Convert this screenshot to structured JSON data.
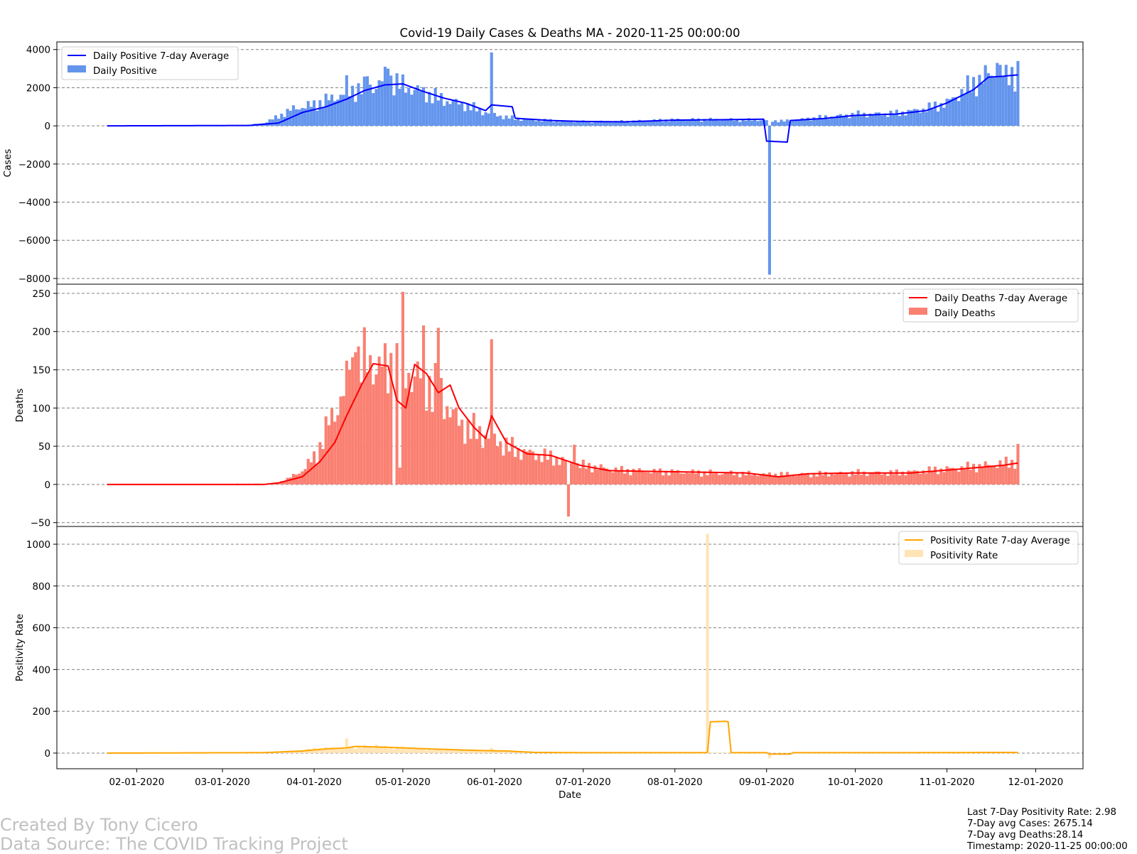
{
  "footer": {
    "credit_author": "Created By Tony Cicero",
    "credit_source": "Data Source: The COVID Tracking Project",
    "stat_positivity": "Last 7-Day Positivity Rate: 2.98",
    "stat_cases": "7-Day avg Cases: 2675.14",
    "stat_deaths": "7-Day avg Deaths:28.14",
    "stat_timestamp": "Timestamp: 2020-11-25 00:00:00"
  },
  "chart_data": {
    "type": "bar",
    "title": "Covid-19 Daily Cases & Deaths MA - 2020-11-25 00:00:00",
    "xlabel": "Date",
    "x_start": "2020-01-22",
    "x_end": "2020-11-25",
    "xlim": [
      "2020-01-05",
      "2020-12-17"
    ],
    "x_ticks": [
      "02-01-2020",
      "03-01-2020",
      "04-01-2020",
      "05-01-2020",
      "06-01-2020",
      "07-01-2020",
      "08-01-2020",
      "09-01-2020",
      "10-01-2020",
      "11-01-2020",
      "12-01-2020"
    ],
    "grid": "y-dashed",
    "colors": {
      "cases_bar": "#6495ED",
      "cases_line": "#0000FF",
      "deaths_bar": "#FA8072",
      "deaths_line": "#FF0000",
      "positivity_bar": "#FFE4B5",
      "positivity_line": "#FFA500",
      "grid": "#808080"
    },
    "panels": [
      {
        "ylabel": "Cases",
        "ylim": [
          -8300,
          4400
        ],
        "yticks": [
          4000,
          2000,
          0,
          -2000,
          -4000,
          -6000,
          -8000
        ],
        "legend_position": "upper-left",
        "bar_series_name": "Daily Positive",
        "line_series_name": "Daily Positive 7-day Average",
        "bar_knots": [
          [
            "2020-01-22",
            0
          ],
          [
            "2020-03-08",
            15
          ],
          [
            "2020-03-15",
            150
          ],
          [
            "2020-03-20",
            500
          ],
          [
            "2020-03-25",
            900
          ],
          [
            "2020-04-01",
            1100
          ],
          [
            "2020-04-08",
            1500
          ],
          [
            "2020-04-15",
            1900
          ],
          [
            "2020-04-22",
            2100
          ],
          [
            "2020-04-26",
            2500
          ],
          [
            "2020-04-30",
            2150
          ],
          [
            "2020-05-07",
            1800
          ],
          [
            "2020-05-15",
            1350
          ],
          [
            "2020-05-22",
            1100
          ],
          [
            "2020-05-29",
            700
          ],
          [
            "2020-06-05",
            450
          ],
          [
            "2020-06-12",
            320
          ],
          [
            "2020-06-20",
            280
          ],
          [
            "2020-06-30",
            220
          ],
          [
            "2020-07-15",
            230
          ],
          [
            "2020-08-01",
            320
          ],
          [
            "2020-08-15",
            330
          ],
          [
            "2020-08-31",
            300
          ],
          [
            "2020-09-07",
            250
          ],
          [
            "2020-09-15",
            380
          ],
          [
            "2020-10-01",
            600
          ],
          [
            "2020-10-15",
            650
          ],
          [
            "2020-10-25",
            900
          ],
          [
            "2020-11-01",
            1200
          ],
          [
            "2020-11-08",
            2000
          ],
          [
            "2020-11-15",
            2700
          ],
          [
            "2020-11-25",
            2800
          ]
        ],
        "bar_spikes": [
          [
            "2020-04-12",
            2650
          ],
          [
            "2020-04-19",
            2600
          ],
          [
            "2020-04-25",
            3100
          ],
          [
            "2020-04-26",
            3000
          ],
          [
            "2020-05-31",
            3850
          ],
          [
            "2020-09-02",
            -7800
          ],
          [
            "2020-11-25",
            3400
          ],
          [
            "2020-11-24",
            1800
          ],
          [
            "2020-11-21",
            3200
          ],
          [
            "2020-11-18",
            3300
          ]
        ],
        "line_knots": [
          [
            "2020-01-22",
            0
          ],
          [
            "2020-03-10",
            20
          ],
          [
            "2020-03-20",
            150
          ],
          [
            "2020-03-28",
            700
          ],
          [
            "2020-04-05",
            1000
          ],
          [
            "2020-04-12",
            1400
          ],
          [
            "2020-04-18",
            1850
          ],
          [
            "2020-04-25",
            2150
          ],
          [
            "2020-05-01",
            2200
          ],
          [
            "2020-05-08",
            1800
          ],
          [
            "2020-05-15",
            1450
          ],
          [
            "2020-05-22",
            1200
          ],
          [
            "2020-05-29",
            800
          ],
          [
            "2020-05-31",
            1100
          ],
          [
            "2020-06-07",
            1000
          ],
          [
            "2020-06-08",
            400
          ],
          [
            "2020-06-20",
            280
          ],
          [
            "2020-07-01",
            230
          ],
          [
            "2020-07-15",
            210
          ],
          [
            "2020-08-01",
            300
          ],
          [
            "2020-08-15",
            320
          ],
          [
            "2020-08-31",
            350
          ],
          [
            "2020-09-01",
            -800
          ],
          [
            "2020-09-08",
            -850
          ],
          [
            "2020-09-09",
            280
          ],
          [
            "2020-09-20",
            380
          ],
          [
            "2020-10-01",
            550
          ],
          [
            "2020-10-15",
            620
          ],
          [
            "2020-10-25",
            800
          ],
          [
            "2020-11-01",
            1200
          ],
          [
            "2020-11-10",
            1900
          ],
          [
            "2020-11-15",
            2550
          ],
          [
            "2020-11-20",
            2600
          ],
          [
            "2020-11-25",
            2675
          ]
        ]
      },
      {
        "ylabel": "Deaths",
        "ylim": [
          -55,
          262
        ],
        "yticks": [
          250,
          200,
          150,
          100,
          50,
          0,
          -50
        ],
        "legend_position": "upper-right",
        "bar_series_name": "Daily Deaths",
        "line_series_name": "Daily Deaths 7-day Average",
        "bar_knots": [
          [
            "2020-01-22",
            0
          ],
          [
            "2020-03-18",
            1
          ],
          [
            "2020-03-22",
            5
          ],
          [
            "2020-03-28",
            18
          ],
          [
            "2020-04-02",
            40
          ],
          [
            "2020-04-06",
            80
          ],
          [
            "2020-04-10",
            110
          ],
          [
            "2020-04-15",
            155
          ],
          [
            "2020-04-20",
            160
          ],
          [
            "2020-04-25",
            150
          ],
          [
            "2020-05-01",
            150
          ],
          [
            "2020-05-06",
            140
          ],
          [
            "2020-05-10",
            130
          ],
          [
            "2020-05-15",
            110
          ],
          [
            "2020-05-20",
            80
          ],
          [
            "2020-05-25",
            70
          ],
          [
            "2020-05-31",
            60
          ],
          [
            "2020-06-08",
            45
          ],
          [
            "2020-06-20",
            35
          ],
          [
            "2020-06-30",
            25
          ],
          [
            "2020-07-15",
            18
          ],
          [
            "2020-08-01",
            16
          ],
          [
            "2020-08-15",
            15
          ],
          [
            "2020-09-01",
            13
          ],
          [
            "2020-09-15",
            13
          ],
          [
            "2020-10-01",
            15
          ],
          [
            "2020-10-15",
            15
          ],
          [
            "2020-11-01",
            20
          ],
          [
            "2020-11-15",
            25
          ],
          [
            "2020-11-25",
            30
          ]
        ],
        "bar_spikes": [
          [
            "2020-04-10",
            115
          ],
          [
            "2020-04-13",
            150
          ],
          [
            "2020-04-15",
            173
          ],
          [
            "2020-04-27",
            172
          ],
          [
            "2020-04-28",
            0
          ],
          [
            "2020-04-30",
            22
          ],
          [
            "2020-05-01",
            252
          ],
          [
            "2020-05-08",
            208
          ],
          [
            "2020-05-13",
            205
          ],
          [
            "2020-05-31",
            190
          ],
          [
            "2020-06-26",
            -42
          ],
          [
            "2020-06-28",
            52
          ],
          [
            "2020-11-25",
            53
          ]
        ],
        "line_knots": [
          [
            "2020-01-22",
            0
          ],
          [
            "2020-03-15",
            0
          ],
          [
            "2020-03-20",
            2
          ],
          [
            "2020-03-28",
            10
          ],
          [
            "2020-04-03",
            30
          ],
          [
            "2020-04-08",
            55
          ],
          [
            "2020-04-12",
            90
          ],
          [
            "2020-04-17",
            130
          ],
          [
            "2020-04-21",
            158
          ],
          [
            "2020-04-26",
            155
          ],
          [
            "2020-04-29",
            110
          ],
          [
            "2020-05-02",
            100
          ],
          [
            "2020-05-05",
            157
          ],
          [
            "2020-05-09",
            145
          ],
          [
            "2020-05-13",
            120
          ],
          [
            "2020-05-17",
            130
          ],
          [
            "2020-05-20",
            100
          ],
          [
            "2020-05-25",
            75
          ],
          [
            "2020-05-29",
            60
          ],
          [
            "2020-05-31",
            90
          ],
          [
            "2020-06-05",
            55
          ],
          [
            "2020-06-12",
            40
          ],
          [
            "2020-06-20",
            38
          ],
          [
            "2020-06-30",
            25
          ],
          [
            "2020-07-10",
            18
          ],
          [
            "2020-07-25",
            17
          ],
          [
            "2020-08-10",
            16
          ],
          [
            "2020-08-25",
            15
          ],
          [
            "2020-09-05",
            10
          ],
          [
            "2020-09-15",
            14
          ],
          [
            "2020-10-01",
            15
          ],
          [
            "2020-10-20",
            15
          ],
          [
            "2020-11-05",
            20
          ],
          [
            "2020-11-20",
            25
          ],
          [
            "2020-11-25",
            28
          ]
        ]
      },
      {
        "ylabel": "Positivity Rate",
        "ylim": [
          -75,
          1085
        ],
        "yticks": [
          1000,
          800,
          600,
          400,
          200,
          0
        ],
        "legend_position": "upper-right",
        "bar_series_name": "Positivity Rate",
        "line_series_name": "Positivity Rate 7-day Average",
        "bar_knots": [
          [
            "2020-01-22",
            0
          ],
          [
            "2020-03-10",
            2
          ],
          [
            "2020-03-25",
            10
          ],
          [
            "2020-04-01",
            20
          ],
          [
            "2020-04-15",
            30
          ],
          [
            "2020-04-25",
            28
          ],
          [
            "2020-05-10",
            18
          ],
          [
            "2020-05-31",
            12
          ],
          [
            "2020-06-10",
            5
          ],
          [
            "2020-07-01",
            3
          ],
          [
            "2020-08-10",
            3
          ],
          [
            "2020-09-01",
            2
          ],
          [
            "2020-10-01",
            2
          ],
          [
            "2020-11-01",
            3
          ],
          [
            "2020-11-25",
            3
          ]
        ],
        "bar_spikes": [
          [
            "2020-04-12",
            70
          ],
          [
            "2020-04-22",
            40
          ],
          [
            "2020-05-31",
            25
          ],
          [
            "2020-08-12",
            1050
          ],
          [
            "2020-09-02",
            -25
          ]
        ],
        "line_knots": [
          [
            "2020-01-22",
            0
          ],
          [
            "2020-03-15",
            2
          ],
          [
            "2020-03-28",
            10
          ],
          [
            "2020-04-05",
            20
          ],
          [
            "2020-04-12",
            25
          ],
          [
            "2020-04-15",
            32
          ],
          [
            "2020-04-25",
            28
          ],
          [
            "2020-05-10",
            20
          ],
          [
            "2020-05-25",
            13
          ],
          [
            "2020-06-05",
            10
          ],
          [
            "2020-06-15",
            3
          ],
          [
            "2020-07-01",
            2
          ],
          [
            "2020-08-10",
            2
          ],
          [
            "2020-08-12",
            3
          ],
          [
            "2020-08-13",
            150
          ],
          [
            "2020-08-18",
            152
          ],
          [
            "2020-08-19",
            150
          ],
          [
            "2020-08-20",
            2
          ],
          [
            "2020-09-01",
            2
          ],
          [
            "2020-09-02",
            -5
          ],
          [
            "2020-09-09",
            -5
          ],
          [
            "2020-09-10",
            2
          ],
          [
            "2020-10-15",
            2
          ],
          [
            "2020-11-25",
            3
          ]
        ]
      }
    ]
  }
}
